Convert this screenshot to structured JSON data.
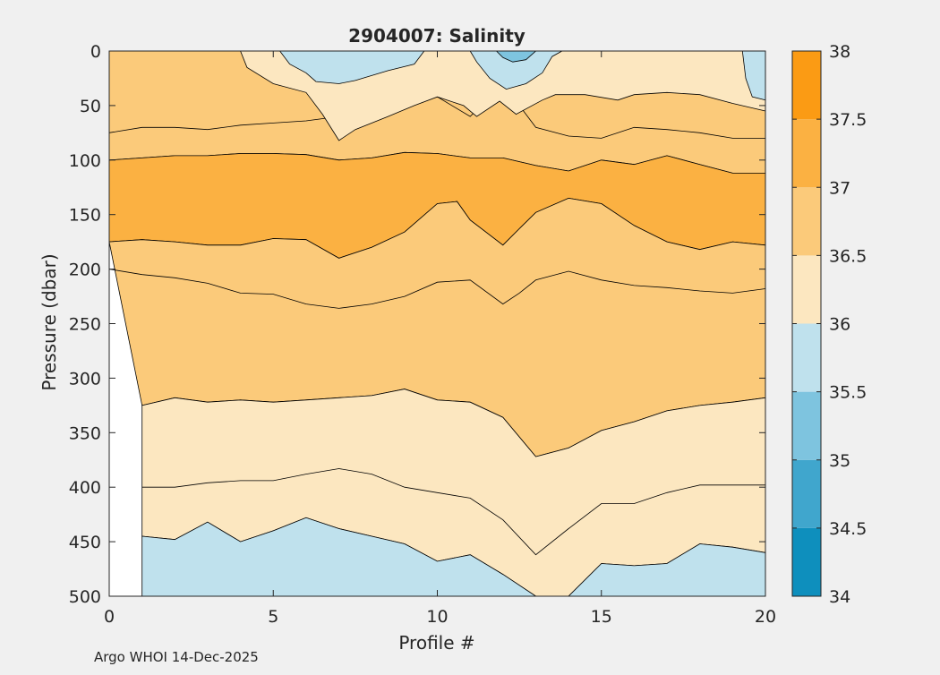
{
  "chart_data": {
    "type": "heatmap",
    "title": "2904007:  Salinity",
    "xlabel": "Profile #",
    "ylabel": "Pressure (dbar)",
    "xlim": [
      0,
      20
    ],
    "ylim": [
      0,
      500
    ],
    "y_reversed": true,
    "x_ticks": [
      "0",
      "5",
      "10",
      "15",
      "20"
    ],
    "y_ticks": [
      "0",
      "50",
      "100",
      "150",
      "200",
      "250",
      "300",
      "350",
      "400",
      "450",
      "500"
    ],
    "x_tick_values": [
      0,
      5,
      10,
      15,
      20
    ],
    "y_tick_values": [
      0,
      50,
      100,
      150,
      200,
      250,
      300,
      350,
      400,
      450,
      500
    ],
    "colorbar": {
      "ticks": [
        "34",
        "34.5",
        "35",
        "35.5",
        "36",
        "36.5",
        "37",
        "37.5",
        "38"
      ],
      "tick_values": [
        34,
        34.5,
        35,
        35.5,
        36,
        36.5,
        37,
        37.5,
        38
      ],
      "bands": [
        {
          "min": 34.0,
          "max": 34.5,
          "color": "#0e8fbd"
        },
        {
          "min": 34.5,
          "max": 35.0,
          "color": "#40a6cd"
        },
        {
          "min": 35.0,
          "max": 35.5,
          "color": "#7ec4df"
        },
        {
          "min": 35.5,
          "max": 36.0,
          "color": "#bfe1ed"
        },
        {
          "min": 36.0,
          "max": 36.5,
          "color": "#fce7c0"
        },
        {
          "min": 36.5,
          "max": 37.0,
          "color": "#fbca7a"
        },
        {
          "min": 37.0,
          "max": 37.5,
          "color": "#fbb142"
        },
        {
          "min": 37.5,
          "max": 38.0,
          "color": "#fb9b14"
        }
      ]
    },
    "regions": [
      {
        "level": "36.5-37.0",
        "color": "#fbca7a",
        "desc": "surface layer 0-110 dbar",
        "top": [
          [
            0,
            0
          ],
          [
            20,
            0
          ]
        ],
        "bottom": [
          [
            0,
            100
          ],
          [
            1,
            98
          ],
          [
            2,
            96
          ],
          [
            3,
            96
          ],
          [
            4,
            94
          ],
          [
            5,
            94
          ],
          [
            6,
            95
          ],
          [
            7,
            100
          ],
          [
            8,
            98
          ],
          [
            9,
            93
          ],
          [
            10,
            94
          ],
          [
            11,
            98
          ],
          [
            12,
            98
          ],
          [
            13,
            105
          ],
          [
            14,
            110
          ],
          [
            15,
            100
          ],
          [
            16,
            104
          ],
          [
            17,
            96
          ],
          [
            18,
            104
          ],
          [
            19,
            112
          ],
          [
            20,
            112
          ]
        ]
      },
      {
        "level": "37.0-37.5",
        "color": "#fbb142",
        "desc": "subsurface core",
        "top": [
          [
            0,
            100
          ],
          [
            1,
            98
          ],
          [
            2,
            96
          ],
          [
            3,
            96
          ],
          [
            4,
            94
          ],
          [
            5,
            94
          ],
          [
            6,
            95
          ],
          [
            7,
            100
          ],
          [
            8,
            98
          ],
          [
            9,
            93
          ],
          [
            10,
            94
          ],
          [
            11,
            98
          ],
          [
            12,
            98
          ],
          [
            13,
            105
          ],
          [
            14,
            110
          ],
          [
            15,
            100
          ],
          [
            16,
            104
          ],
          [
            17,
            96
          ],
          [
            18,
            104
          ],
          [
            19,
            112
          ],
          [
            20,
            112
          ]
        ],
        "bottom": [
          [
            0,
            175
          ],
          [
            1,
            173
          ],
          [
            2,
            175
          ],
          [
            3,
            178
          ],
          [
            4,
            178
          ],
          [
            5,
            172
          ],
          [
            6,
            173
          ],
          [
            7,
            190
          ],
          [
            8,
            180
          ],
          [
            9,
            166
          ],
          [
            10,
            140
          ],
          [
            10.6,
            138
          ],
          [
            11,
            155
          ],
          [
            12,
            178
          ],
          [
            12.5,
            163
          ],
          [
            13,
            148
          ],
          [
            14,
            135
          ],
          [
            15,
            140
          ],
          [
            16,
            160
          ],
          [
            17,
            175
          ],
          [
            18,
            182
          ],
          [
            19,
            175
          ],
          [
            20,
            178
          ]
        ]
      },
      {
        "level": "36.5-37.0",
        "color": "#fbca7a",
        "desc": "intermediate layer",
        "top": [
          [
            0,
            175
          ],
          [
            1,
            173
          ],
          [
            2,
            175
          ],
          [
            3,
            178
          ],
          [
            4,
            178
          ],
          [
            5,
            172
          ],
          [
            6,
            173
          ],
          [
            7,
            190
          ],
          [
            8,
            180
          ],
          [
            9,
            166
          ],
          [
            10,
            140
          ],
          [
            10.6,
            138
          ],
          [
            11,
            155
          ],
          [
            12,
            178
          ],
          [
            12.5,
            163
          ],
          [
            13,
            148
          ],
          [
            14,
            135
          ],
          [
            15,
            140
          ],
          [
            16,
            160
          ],
          [
            17,
            175
          ],
          [
            18,
            182
          ],
          [
            19,
            175
          ],
          [
            20,
            178
          ]
        ],
        "bottom": [
          [
            1,
            325
          ],
          [
            2,
            318
          ],
          [
            3,
            322
          ],
          [
            4,
            320
          ],
          [
            5,
            322
          ],
          [
            6,
            320
          ],
          [
            7,
            318
          ],
          [
            8,
            316
          ],
          [
            9,
            310
          ],
          [
            10,
            320
          ],
          [
            11,
            322
          ],
          [
            12,
            336
          ],
          [
            13,
            372
          ],
          [
            14,
            364
          ],
          [
            15,
            348
          ],
          [
            16,
            340
          ],
          [
            17,
            330
          ],
          [
            18,
            325
          ],
          [
            19,
            322
          ],
          [
            20,
            318
          ]
        ]
      },
      {
        "level": "36.0-36.5",
        "color": "#fce7c0",
        "desc": "lower layer",
        "top": [
          [
            1,
            325
          ],
          [
            2,
            318
          ],
          [
            3,
            322
          ],
          [
            4,
            320
          ],
          [
            5,
            322
          ],
          [
            6,
            320
          ],
          [
            7,
            318
          ],
          [
            8,
            316
          ],
          [
            9,
            310
          ],
          [
            10,
            320
          ],
          [
            11,
            322
          ],
          [
            12,
            336
          ],
          [
            13,
            372
          ],
          [
            14,
            364
          ],
          [
            15,
            348
          ],
          [
            16,
            340
          ],
          [
            17,
            330
          ],
          [
            18,
            325
          ],
          [
            19,
            322
          ],
          [
            20,
            318
          ]
        ],
        "bottom": [
          [
            1,
            445
          ],
          [
            2,
            448
          ],
          [
            3,
            432
          ],
          [
            4,
            450
          ],
          [
            5,
            440
          ],
          [
            6,
            428
          ],
          [
            7,
            438
          ],
          [
            8,
            445
          ],
          [
            9,
            452
          ],
          [
            10,
            468
          ],
          [
            11,
            462
          ],
          [
            12,
            480
          ],
          [
            13,
            500
          ],
          [
            14,
            500
          ],
          [
            15,
            470
          ],
          [
            16,
            472
          ],
          [
            17,
            470
          ],
          [
            18,
            452
          ],
          [
            19,
            455
          ],
          [
            20,
            460
          ]
        ]
      },
      {
        "level": "35.5-36.0",
        "color": "#bfe1ed",
        "desc": "bottom fresher water",
        "top": [
          [
            1,
            445
          ],
          [
            2,
            448
          ],
          [
            3,
            432
          ],
          [
            4,
            450
          ],
          [
            5,
            440
          ],
          [
            6,
            428
          ],
          [
            7,
            438
          ],
          [
            8,
            445
          ],
          [
            9,
            452
          ],
          [
            10,
            468
          ],
          [
            11,
            462
          ],
          [
            12,
            480
          ],
          [
            13,
            500
          ],
          [
            14,
            500
          ],
          [
            15,
            470
          ],
          [
            16,
            472
          ],
          [
            17,
            470
          ],
          [
            18,
            452
          ],
          [
            19,
            455
          ],
          [
            20,
            460
          ]
        ],
        "bottom": [
          [
            1,
            500
          ],
          [
            20,
            500
          ]
        ]
      }
    ],
    "contours": [
      [
        [
          0,
          75
        ],
        [
          1,
          70
        ],
        [
          2,
          70
        ],
        [
          3,
          72
        ],
        [
          4,
          68
        ],
        [
          5,
          66
        ],
        [
          6,
          64
        ],
        [
          7,
          60
        ],
        [
          8,
          48
        ],
        [
          9,
          50
        ],
        [
          10,
          42
        ],
        [
          11,
          60
        ],
        [
          12,
          30
        ],
        [
          13,
          70
        ],
        [
          14,
          78
        ],
        [
          15,
          80
        ],
        [
          16,
          70
        ],
        [
          17,
          72
        ],
        [
          18,
          75
        ],
        [
          19,
          80
        ],
        [
          20,
          80
        ]
      ],
      [
        [
          0,
          200
        ],
        [
          1,
          205
        ],
        [
          2,
          208
        ],
        [
          3,
          213
        ],
        [
          4,
          222
        ],
        [
          5,
          223
        ],
        [
          6,
          232
        ],
        [
          7,
          236
        ],
        [
          8,
          232
        ],
        [
          9,
          225
        ],
        [
          10,
          212
        ],
        [
          11,
          210
        ],
        [
          12,
          232
        ],
        [
          12.5,
          222
        ],
        [
          13,
          210
        ],
        [
          14,
          202
        ],
        [
          15,
          210
        ],
        [
          16,
          215
        ],
        [
          17,
          217
        ],
        [
          18,
          220
        ],
        [
          19,
          222
        ],
        [
          20,
          218
        ]
      ],
      [
        [
          1,
          400
        ],
        [
          2,
          400
        ],
        [
          3,
          396
        ],
        [
          4,
          394
        ],
        [
          5,
          394
        ],
        [
          6,
          388
        ],
        [
          7,
          383
        ],
        [
          8,
          388
        ],
        [
          9,
          400
        ],
        [
          10,
          405
        ],
        [
          11,
          410
        ],
        [
          12,
          430
        ],
        [
          13,
          462
        ],
        [
          14,
          438
        ],
        [
          15,
          415
        ],
        [
          16,
          415
        ],
        [
          17,
          405
        ],
        [
          18,
          398
        ],
        [
          19,
          398
        ],
        [
          20,
          398
        ]
      ]
    ],
    "islands": [
      {
        "color": "#bfe1ed",
        "points": [
          [
            5.2,
            0
          ],
          [
            5.5,
            12
          ],
          [
            6,
            20
          ],
          [
            6.3,
            28
          ],
          [
            7,
            30
          ],
          [
            7.5,
            27
          ],
          [
            8.5,
            18
          ],
          [
            9.3,
            12
          ],
          [
            9.6,
            0
          ]
        ]
      },
      {
        "color": "#bfe1ed",
        "points": [
          [
            11,
            0
          ],
          [
            11.2,
            10
          ],
          [
            11.6,
            25
          ],
          [
            12.1,
            35
          ],
          [
            12.7,
            30
          ],
          [
            13.2,
            20
          ],
          [
            13.5,
            5
          ],
          [
            13.8,
            0
          ]
        ]
      },
      {
        "color": "#7ec4df",
        "points": [
          [
            11.8,
            0
          ],
          [
            12,
            6
          ],
          [
            12.3,
            10
          ],
          [
            12.7,
            8
          ],
          [
            13,
            0
          ]
        ]
      },
      {
        "color": "#bfe1ed",
        "points": [
          [
            19.3,
            0
          ],
          [
            19.4,
            25
          ],
          [
            19.6,
            42
          ],
          [
            20,
            45
          ],
          [
            20,
            0
          ]
        ]
      },
      {
        "color": "#fce7c0",
        "points": [
          [
            4,
            0
          ],
          [
            4.2,
            15
          ],
          [
            5,
            30
          ],
          [
            6,
            38
          ],
          [
            6.5,
            58
          ],
          [
            7,
            82
          ],
          [
            7.5,
            72
          ],
          [
            8.5,
            60
          ],
          [
            9.3,
            50
          ],
          [
            10,
            42
          ],
          [
            10.8,
            50
          ],
          [
            11.2,
            60
          ],
          [
            11.9,
            46
          ],
          [
            12.4,
            58
          ],
          [
            13.2,
            45
          ],
          [
            13.6,
            40
          ],
          [
            14.5,
            40
          ],
          [
            15.5,
            45
          ],
          [
            16,
            40
          ],
          [
            17,
            38
          ],
          [
            18,
            40
          ],
          [
            19,
            48
          ],
          [
            20,
            55
          ],
          [
            20,
            0
          ]
        ]
      }
    ],
    "footer": "Argo WHOI 14-Dec-2025"
  }
}
